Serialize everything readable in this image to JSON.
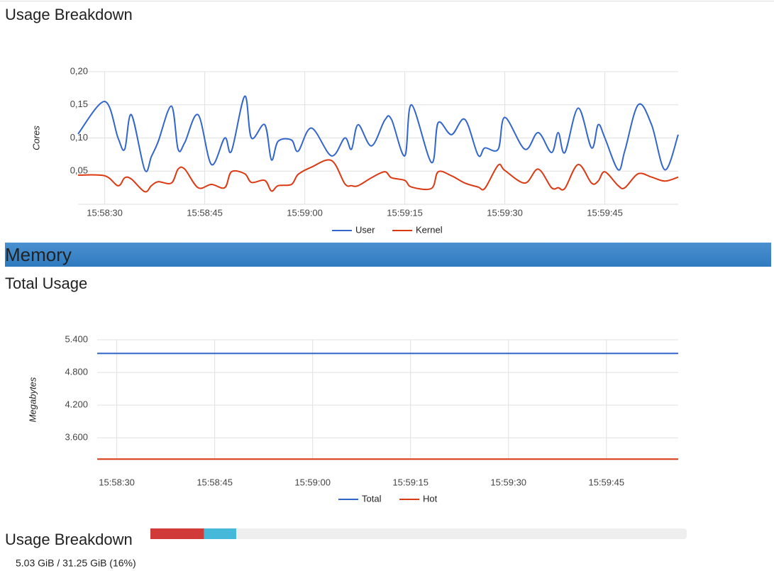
{
  "header": {
    "title": "Usage Breakdown"
  },
  "chart_data": [
    {
      "type": "line",
      "y_label": "Cores",
      "x": [
        "15:58:26",
        "15:58:30",
        "15:58:32",
        "15:58:33",
        "15:58:34",
        "15:58:36",
        "15:58:37",
        "15:58:38",
        "15:58:40",
        "15:58:41",
        "15:58:42",
        "15:58:44",
        "15:58:46",
        "15:58:48",
        "15:58:49",
        "15:58:51",
        "15:58:52",
        "15:58:54",
        "15:58:55",
        "15:58:56",
        "15:58:58",
        "15:58:59",
        "15:59:01",
        "15:59:04",
        "15:59:06",
        "15:59:07",
        "15:59:08",
        "15:59:10",
        "15:59:12",
        "15:59:13",
        "15:59:15",
        "15:59:16",
        "15:59:19",
        "15:59:20",
        "15:59:22",
        "15:59:24",
        "15:59:26",
        "15:59:27",
        "15:59:29",
        "15:59:30",
        "15:59:33",
        "15:59:35",
        "15:59:37",
        "15:59:38",
        "15:59:39",
        "15:59:41",
        "15:59:43",
        "15:59:44",
        "15:59:45",
        "15:59:47",
        "15:59:48",
        "15:59:50",
        "15:59:52",
        "15:59:54",
        "15:59:56"
      ],
      "xlim": [
        "15:58:26",
        "15:59:56"
      ],
      "xticks": [
        "15:58:30",
        "15:58:45",
        "15:59:00",
        "15:59:15",
        "15:59:30",
        "15:59:45"
      ],
      "ylim": [
        0,
        0.2
      ],
      "yticks": [
        {
          "value": 0.05,
          "label": "0,05"
        },
        {
          "value": 0.1,
          "label": "0,10"
        },
        {
          "value": 0.15,
          "label": "0,15"
        },
        {
          "value": 0.2,
          "label": "0,20"
        }
      ],
      "grid": true,
      "legend": "bottom",
      "series": [
        {
          "name": "User",
          "color": "#3366cc",
          "values": [
            0.106,
            0.155,
            0.1,
            0.083,
            0.135,
            0.052,
            0.072,
            0.094,
            0.148,
            0.083,
            0.093,
            0.135,
            0.06,
            0.1,
            0.08,
            0.163,
            0.1,
            0.12,
            0.067,
            0.095,
            0.097,
            0.08,
            0.115,
            0.073,
            0.1,
            0.083,
            0.12,
            0.088,
            0.127,
            0.128,
            0.073,
            0.15,
            0.063,
            0.123,
            0.105,
            0.128,
            0.074,
            0.085,
            0.083,
            0.131,
            0.083,
            0.108,
            0.078,
            0.108,
            0.078,
            0.145,
            0.085,
            0.12,
            0.1,
            0.052,
            0.081,
            0.15,
            0.12,
            0.052,
            0.105
          ]
        },
        {
          "name": "Kernel",
          "color": "#dc3912",
          "values": [
            0.044,
            0.043,
            0.028,
            0.04,
            0.038,
            0.019,
            0.028,
            0.034,
            0.032,
            0.053,
            0.053,
            0.025,
            0.03,
            0.025,
            0.049,
            0.046,
            0.033,
            0.036,
            0.02,
            0.028,
            0.03,
            0.045,
            0.056,
            0.066,
            0.031,
            0.028,
            0.028,
            0.04,
            0.049,
            0.04,
            0.036,
            0.026,
            0.024,
            0.049,
            0.043,
            0.032,
            0.026,
            0.024,
            0.059,
            0.051,
            0.032,
            0.053,
            0.025,
            0.025,
            0.024,
            0.06,
            0.032,
            0.035,
            0.049,
            0.028,
            0.025,
            0.046,
            0.041,
            0.035,
            0.041
          ]
        }
      ]
    },
    {
      "type": "line",
      "y_label": "Megabytes",
      "x": [
        "15:58:27",
        "15:59:56"
      ],
      "xlim": [
        "15:58:27",
        "15:59:56"
      ],
      "xticks": [
        "15:58:30",
        "15:58:45",
        "15:59:00",
        "15:59:15",
        "15:59:30",
        "15:59:45"
      ],
      "ylim": [
        3200,
        5400
      ],
      "yticks": [
        {
          "value": 3600,
          "label": "3.600"
        },
        {
          "value": 4200,
          "label": "4.200"
        },
        {
          "value": 4800,
          "label": "4.800"
        },
        {
          "value": 5400,
          "label": "5.400"
        }
      ],
      "grid": true,
      "legend": "bottom",
      "series": [
        {
          "name": "Total",
          "color": "#3366cc",
          "values": [
            5150,
            5150
          ]
        },
        {
          "name": "Hot",
          "color": "#dc3912",
          "values": [
            3210,
            3210
          ]
        }
      ]
    }
  ],
  "memory": {
    "title": "Memory",
    "total_usage_title": "Total Usage"
  },
  "usage_breakdown": {
    "title": "Usage Breakdown",
    "summary": "5.03 GiB / 31.25 GiB (16%)",
    "bar": {
      "xlim": [
        0,
        100
      ],
      "segments": [
        {
          "color": "#d03a38",
          "value": 10
        },
        {
          "color": "#46b8da",
          "value": 6
        }
      ]
    }
  }
}
